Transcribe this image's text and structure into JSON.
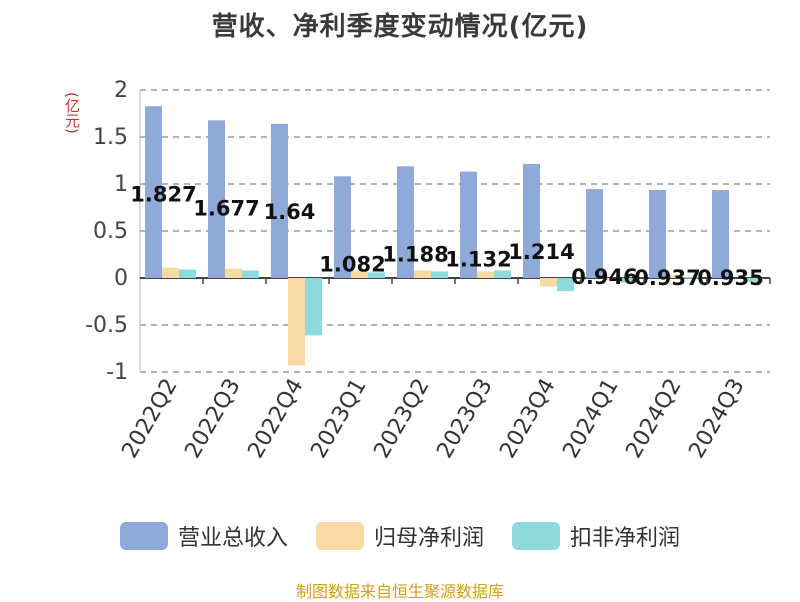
{
  "chart_data": {
    "type": "bar",
    "title": "营收、净利季度变动情况(亿元)",
    "unit_label": "(亿元)",
    "categories": [
      "2022Q2",
      "2022Q3",
      "2022Q4",
      "2023Q1",
      "2023Q2",
      "2023Q3",
      "2023Q4",
      "2024Q1",
      "2024Q2",
      "2024Q3"
    ],
    "series": [
      {
        "name": "营业总收入",
        "color": "#8fa9d8",
        "values": [
          1.827,
          1.677,
          1.64,
          1.082,
          1.188,
          1.132,
          1.214,
          0.946,
          0.937,
          0.935
        ],
        "labels": [
          "1.827",
          "1.677",
          "1.64",
          "1.082",
          "1.188",
          "1.132",
          "1.214",
          "0.946",
          "0.937",
          "0.935"
        ]
      },
      {
        "name": "归母净利润",
        "color": "#f9d9a4",
        "values": [
          0.11,
          0.1,
          -0.93,
          0.08,
          0.08,
          0.07,
          -0.09,
          -0.02,
          0.03,
          0.0
        ]
      },
      {
        "name": "扣非净利润",
        "color": "#8fdada",
        "values": [
          0.09,
          0.08,
          -0.61,
          0.06,
          0.07,
          0.08,
          -0.14,
          -0.05,
          0.01,
          -0.04
        ]
      }
    ],
    "ylim": [
      -1,
      2
    ],
    "yticks": [
      "2",
      "1.5",
      "1",
      "0.5",
      "0",
      "-0.5",
      "-1"
    ],
    "ytick_values": [
      2,
      1.5,
      1,
      0.5,
      0,
      -0.5,
      -1
    ],
    "grid": true,
    "legend_position": "bottom"
  },
  "source": "制图数据来自恒生聚源数据库"
}
